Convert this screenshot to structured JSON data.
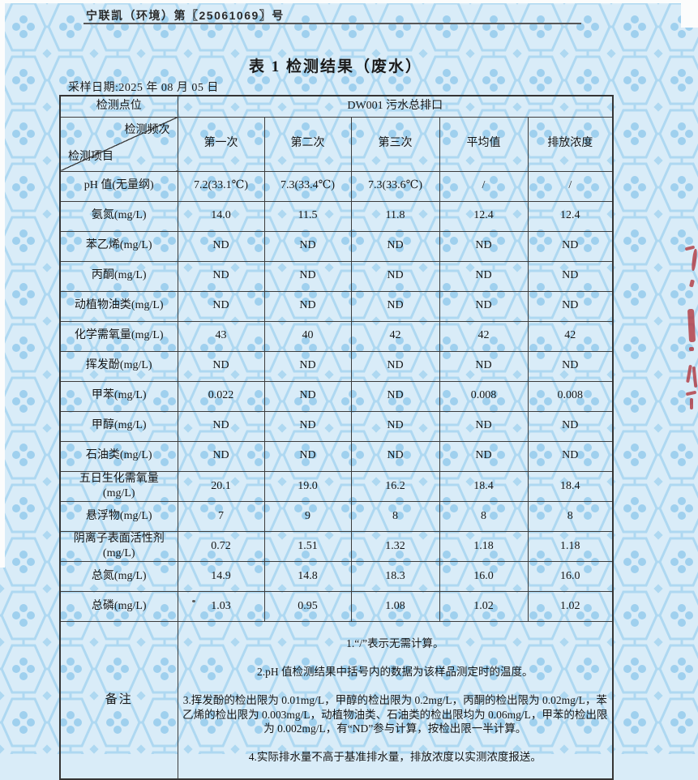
{
  "page": {
    "doc_number": "宁联凯（环境）第〖25061069〗号",
    "title": "表 1 检测结果（废水）",
    "sampling_date": "采样日期:2025 年 08 月 05 日"
  },
  "colors": {
    "stamp_red": "#b23a42",
    "paper_blue": "#d9ecf8",
    "pattern_blue": "#a9d6ef"
  },
  "table": {
    "point_label": "检测点位",
    "point_value": "DW001 污水总排口",
    "diag_top": "检测频次",
    "diag_bottom": "检测项目",
    "columns": [
      "第一次",
      "第二次",
      "第三次",
      "平均值",
      "排放浓度"
    ],
    "rows": [
      {
        "label": "pH 值(无量纲)",
        "values": [
          "7.2(33.1℃)",
          "7.3(33.4℃)",
          "7.3(33.6℃)",
          "/",
          "/"
        ]
      },
      {
        "label": "氨氮(mg/L)",
        "values": [
          "14.0",
          "11.5",
          "11.8",
          "12.4",
          "12.4"
        ]
      },
      {
        "label": "苯乙烯(mg/L)",
        "values": [
          "ND",
          "ND",
          "ND",
          "ND",
          "ND"
        ]
      },
      {
        "label": "丙酮(mg/L)",
        "values": [
          "ND",
          "ND",
          "ND",
          "ND",
          "ND"
        ]
      },
      {
        "label": "动植物油类(mg/L)",
        "values": [
          "ND",
          "ND",
          "ND",
          "ND",
          "ND"
        ]
      },
      {
        "label": "化学需氧量(mg/L)",
        "values": [
          "43",
          "40",
          "42",
          "42",
          "42"
        ]
      },
      {
        "label": "挥发酚(mg/L)",
        "values": [
          "ND",
          "ND",
          "ND",
          "ND",
          "ND"
        ]
      },
      {
        "label": "甲苯(mg/L)",
        "values": [
          "0.022",
          "ND",
          "ND",
          "0.008",
          "0.008"
        ]
      },
      {
        "label": "甲醇(mg/L)",
        "values": [
          "ND",
          "ND",
          "ND",
          "ND",
          "ND"
        ]
      },
      {
        "label": "石油类(mg/L)",
        "values": [
          "ND",
          "ND",
          "ND",
          "ND",
          "ND"
        ]
      },
      {
        "label": "五日生化需氧量\n(mg/L)",
        "values": [
          "20.1",
          "19.0",
          "16.2",
          "18.4",
          "18.4"
        ]
      },
      {
        "label": "悬浮物(mg/L)",
        "values": [
          "7",
          "9",
          "8",
          "8",
          "8"
        ]
      },
      {
        "label": "阴离子表面活性剂\n(mg/L)",
        "values": [
          "0.72",
          "1.51",
          "1.32",
          "1.18",
          "1.18"
        ]
      },
      {
        "label": "总氮(mg/L)",
        "values": [
          "14.9",
          "14.8",
          "18.3",
          "16.0",
          "16.0"
        ]
      },
      {
        "label": "总磷(mg/L)",
        "values": [
          "1.03",
          "0.95",
          "1.08",
          "1.02",
          "1.02"
        ]
      }
    ],
    "remark_label": "备注",
    "remarks": [
      "1.“/”表示无需计算。",
      "2.pH 值检测结果中括号内的数据为该样品测定时的温度。",
      "3.挥发酚的检出限为 0.01mg/L，甲醇的检出限为 0.2mg/L，丙酮的检出限为 0.02mg/L，苯乙烯的检出限为 0.003mg/L，动植物油类、石油类的检出限均为 0.06mg/L，甲苯的检出限为 0.002mg/L，有“ND”参与计算，按检出限一半计算。",
      "4.实际排水量不高于基准排水量，排放浓度以实测浓度报送。"
    ]
  }
}
